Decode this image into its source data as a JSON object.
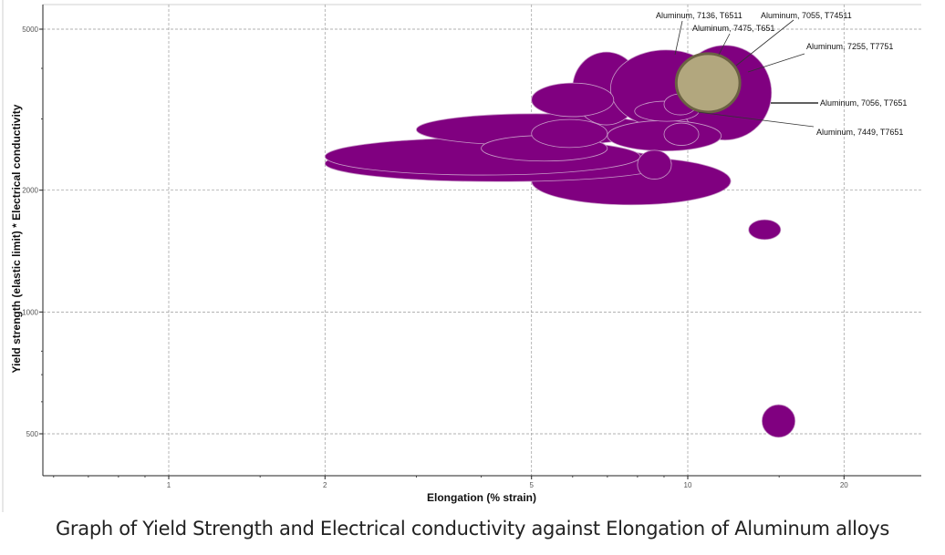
{
  "caption": "Graph of Yield Strength and Electrical conductivity against Elongation of Aluminum alloys",
  "chart_data": {
    "type": "scatter",
    "subtype": "range-bubble (ellipses spanning x and y property ranges)",
    "xlabel": "Elongation (% strain)",
    "ylabel": "Yield strength (elastic limit) * Electrical conductivity",
    "xscale": "log",
    "yscale": "log",
    "xlim": [
      0.57,
      28
    ],
    "ylim": [
      395,
      5750
    ],
    "xticks": [
      1,
      2,
      5,
      10,
      20
    ],
    "xtick_labels": [
      "1",
      "2",
      "5",
      "10",
      "20"
    ],
    "yticks": [
      500,
      1000,
      2000,
      5000
    ],
    "ytick_labels": [
      "500",
      "1000",
      "2000",
      "5000"
    ],
    "grid": true,
    "colors": {
      "bubble": "#800080",
      "bubble_outline": "#c79ac7",
      "highlight": "#b2a77e",
      "highlight_outline": "#6b6243",
      "grid": "#999999"
    },
    "bubbles": [
      {
        "x": [
          5.0,
          12.1
        ],
        "y": [
          1840,
          2410
        ]
      },
      {
        "x": [
          2.0,
          9.3
        ],
        "y": [
          2100,
          2580
        ]
      },
      {
        "x": [
          2.0,
          8.1
        ],
        "y": [
          2180,
          2690
        ]
      },
      {
        "x": [
          3.0,
          8.7
        ],
        "y": [
          2580,
          3090
        ]
      },
      {
        "x": [
          6.0,
          8.1
        ],
        "y": [
          2900,
          4390
        ]
      },
      {
        "x": [
          7.1,
          11.6
        ],
        "y": [
          2860,
          4440
        ]
      },
      {
        "x": [
          9.6,
          14.5
        ],
        "y": [
          2660,
          4560
        ]
      },
      {
        "x": [
          5.0,
          7.2
        ],
        "y": [
          3040,
          3680
        ]
      },
      {
        "x": [
          4.0,
          7.0
        ],
        "y": [
          2360,
          2730
        ]
      },
      {
        "x": [
          5.0,
          7.0
        ],
        "y": [
          2550,
          2990
        ]
      },
      {
        "x": [
          7.0,
          11.6
        ],
        "y": [
          2500,
          2970
        ]
      },
      {
        "x": [
          8.0,
          9.3
        ],
        "y": [
          2130,
          2510
        ]
      },
      {
        "x": [
          7.9,
          10.5
        ],
        "y": [
          2960,
          3320
        ]
      },
      {
        "x": [
          9.0,
          10.5
        ],
        "y": [
          2580,
          2930
        ]
      },
      {
        "x": [
          9.0,
          10.4
        ],
        "y": [
          3070,
          3460
        ]
      },
      {
        "x": [
          13.1,
          15.1
        ],
        "y": [
          1510,
          1690
        ]
      },
      {
        "x": [
          13.9,
          16.1
        ],
        "y": [
          490,
          590
        ]
      },
      {
        "x": [
          9.5,
          12.6
        ],
        "y": [
          3120,
          4350
        ],
        "highlight": true
      }
    ],
    "annotations": [
      {
        "text": "Aluminum, 7136, T6511"
      },
      {
        "text": "Aluminum, 7055, T74511"
      },
      {
        "text": "Aluminum, 7475, T651"
      },
      {
        "text": "Aluminum, 7255, T7751"
      },
      {
        "text": "Aluminum, 7056, T7651"
      },
      {
        "text": "Aluminum, 7449, T7651"
      }
    ]
  }
}
